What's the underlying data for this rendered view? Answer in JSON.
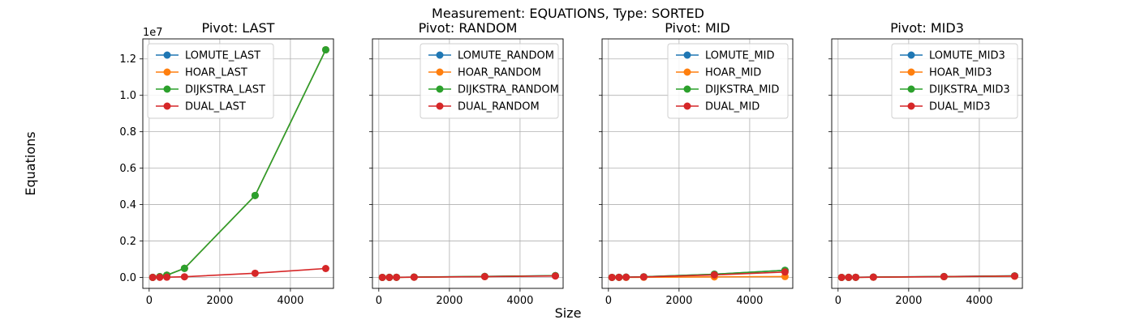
{
  "figure": {
    "suptitle": "Measurement: EQUATIONS, Type: SORTED",
    "xlabel": "Size",
    "ylabel": "Equations",
    "y_offset_label": "1e7",
    "colors": {
      "LOMUTE": "#1f77b4",
      "HOAR": "#ff7f0e",
      "DIJKSTRA": "#2ca02c",
      "DUAL": "#d62728"
    },
    "grid": true,
    "shared_y": true
  },
  "chart_data": [
    {
      "type": "line",
      "title": "Pivot: LAST",
      "x": [
        100,
        300,
        500,
        1000,
        3000,
        5000
      ],
      "xlim": [
        -180,
        5220
      ],
      "xticks": [
        0,
        2000,
        4000
      ],
      "ylim": [
        -600000,
        13100000
      ],
      "yticks": [
        0,
        2000000,
        4000000,
        6000000,
        8000000,
        10000000,
        12000000
      ],
      "ytick_labels": [
        "0.0",
        "0.2",
        "0.4",
        "0.6",
        "0.8",
        "1.0",
        "1.2"
      ],
      "legend_position": "upper-left",
      "series": [
        {
          "name": "LOMUTE_LAST",
          "color": "#1f77b4",
          "values": [
            5000,
            45000,
            125000,
            500000,
            4500000,
            12500000
          ]
        },
        {
          "name": "HOAR_LAST",
          "color": "#ff7f0e",
          "values": [
            5000,
            45000,
            125000,
            500000,
            4500000,
            12500000
          ]
        },
        {
          "name": "DIJKSTRA_LAST",
          "color": "#2ca02c",
          "values": [
            5000,
            45000,
            125000,
            500000,
            4500000,
            12500000
          ]
        },
        {
          "name": "DUAL_LAST",
          "color": "#d62728",
          "values": [
            2000,
            8000,
            15000,
            35000,
            230000,
            490000
          ]
        }
      ]
    },
    {
      "type": "line",
      "title": "Pivot: RANDOM",
      "x": [
        100,
        300,
        500,
        1000,
        3000,
        5000
      ],
      "xlim": [
        -180,
        5220
      ],
      "xticks": [
        0,
        2000,
        4000
      ],
      "ylim": [
        -600000,
        13100000
      ],
      "yticks": [
        0,
        2000000,
        4000000,
        6000000,
        8000000,
        10000000,
        12000000
      ],
      "ytick_labels": [
        "",
        "",
        "",
        "",
        "",
        "",
        ""
      ],
      "legend_position": "upper-right",
      "series": [
        {
          "name": "LOMUTE_RANDOM",
          "color": "#1f77b4",
          "values": [
            1000,
            4000,
            8000,
            18000,
            55000,
            100000
          ]
        },
        {
          "name": "HOAR_RANDOM",
          "color": "#ff7f0e",
          "values": [
            1000,
            3500,
            7000,
            15000,
            50000,
            90000
          ]
        },
        {
          "name": "DIJKSTRA_RANDOM",
          "color": "#2ca02c",
          "values": [
            1000,
            4000,
            8000,
            18000,
            55000,
            100000
          ]
        },
        {
          "name": "DUAL_RANDOM",
          "color": "#d62728",
          "values": [
            900,
            3000,
            6000,
            14000,
            45000,
            80000
          ]
        }
      ]
    },
    {
      "type": "line",
      "title": "Pivot: MID",
      "x": [
        100,
        300,
        500,
        1000,
        3000,
        5000
      ],
      "xlim": [
        -180,
        5220
      ],
      "xticks": [
        0,
        2000,
        4000
      ],
      "ylim": [
        -600000,
        13100000
      ],
      "yticks": [
        0,
        2000000,
        4000000,
        6000000,
        8000000,
        10000000,
        12000000
      ],
      "ytick_labels": [
        "",
        "",
        "",
        "",
        "",
        "",
        ""
      ],
      "legend_position": "upper-right",
      "series": [
        {
          "name": "LOMUTE_MID",
          "color": "#1f77b4",
          "values": [
            2000,
            8000,
            15000,
            35000,
            180000,
            390000
          ]
        },
        {
          "name": "HOAR_MID",
          "color": "#ff7f0e",
          "values": [
            800,
            2500,
            4500,
            9000,
            30000,
            50000
          ]
        },
        {
          "name": "DIJKSTRA_MID",
          "color": "#2ca02c",
          "values": [
            2000,
            8000,
            15000,
            35000,
            180000,
            390000
          ]
        },
        {
          "name": "DUAL_MID",
          "color": "#d62728",
          "values": [
            1500,
            6000,
            12000,
            28000,
            140000,
            300000
          ]
        }
      ]
    },
    {
      "type": "line",
      "title": "Pivot: MID3",
      "x": [
        100,
        300,
        500,
        1000,
        3000,
        5000
      ],
      "xlim": [
        -180,
        5220
      ],
      "xticks": [
        0,
        2000,
        4000
      ],
      "ylim": [
        -600000,
        13100000
      ],
      "yticks": [
        0,
        2000000,
        4000000,
        6000000,
        8000000,
        10000000,
        12000000
      ],
      "ytick_labels": [
        "",
        "",
        "",
        "",
        "",
        "",
        ""
      ],
      "legend_position": "upper-right",
      "series": [
        {
          "name": "LOMUTE_MID3",
          "color": "#1f77b4",
          "values": [
            1000,
            4000,
            8000,
            18000,
            50000,
            85000
          ]
        },
        {
          "name": "HOAR_MID3",
          "color": "#ff7f0e",
          "values": [
            800,
            3000,
            6000,
            13000,
            40000,
            65000
          ]
        },
        {
          "name": "DIJKSTRA_MID3",
          "color": "#2ca02c",
          "values": [
            1000,
            4000,
            8000,
            18000,
            50000,
            85000
          ]
        },
        {
          "name": "DUAL_MID3",
          "color": "#d62728",
          "values": [
            900,
            3500,
            7000,
            15000,
            45000,
            75000
          ]
        }
      ]
    }
  ]
}
